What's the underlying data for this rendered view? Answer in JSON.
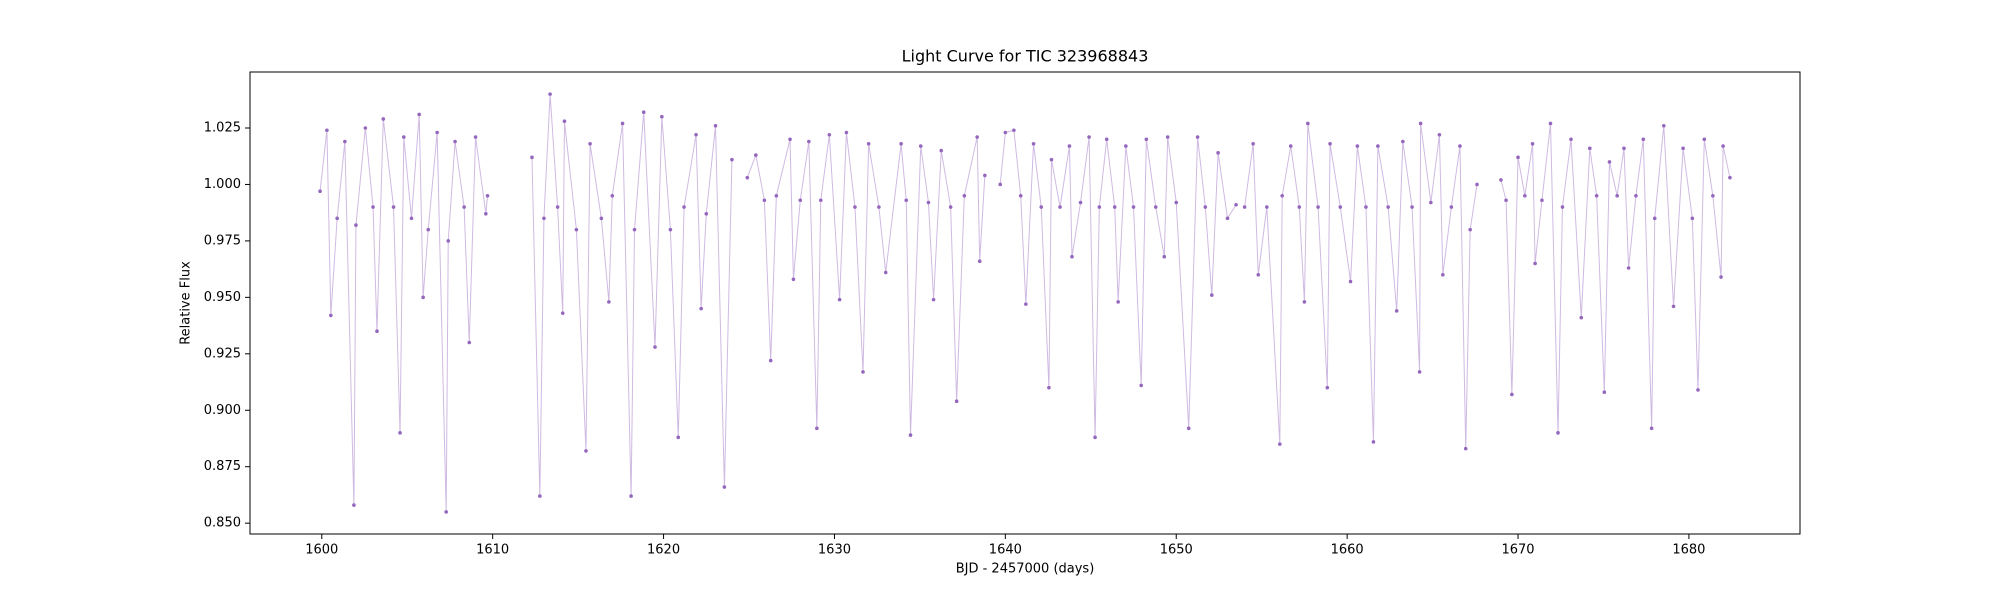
{
  "chart_data": {
    "type": "line",
    "title": "Light Curve for TIC 323968843",
    "x_label": "BJD - 2457000 (days)",
    "y_label": "Relative Flux",
    "color": "#9467bd",
    "grid": false,
    "xlim": [
      1595.8,
      1686.5
    ],
    "ylim": [
      0.8452,
      1.0498
    ],
    "xticks": [
      1600,
      1610,
      1620,
      1630,
      1640,
      1650,
      1660,
      1670,
      1680
    ],
    "yticks": [
      {
        "value": 0.85,
        "label": "0.850"
      },
      {
        "value": 0.875,
        "label": "0.875"
      },
      {
        "value": 0.9,
        "label": "0.900"
      },
      {
        "value": 0.925,
        "label": "0.925"
      },
      {
        "value": 0.95,
        "label": "0.950"
      },
      {
        "value": 0.975,
        "label": "0.975"
      },
      {
        "value": 1.0,
        "label": "1.000"
      },
      {
        "value": 1.025,
        "label": "1.025"
      }
    ],
    "x": [
      1599.9,
      1600.3,
      1600.53,
      1600.9,
      1601.35,
      1601.88,
      1602.0,
      1602.55,
      1603.0,
      1603.23,
      1603.6,
      1604.2,
      1604.58,
      1604.8,
      1605.25,
      1605.7,
      1605.93,
      1606.23,
      1606.75,
      1607.28,
      1607.4,
      1607.8,
      1608.33,
      1608.63,
      1609.0,
      1609.6,
      1609.7,
      null,
      1612.3,
      1612.76,
      1613.0,
      1613.36,
      1613.8,
      1614.1,
      1614.2,
      1614.9,
      1615.46,
      1615.7,
      1616.36,
      1616.8,
      1617.0,
      1617.6,
      1618.1,
      1618.3,
      1618.84,
      1619.5,
      1619.9,
      1620.4,
      1620.86,
      1621.2,
      1621.9,
      1622.2,
      1622.5,
      1623.04,
      1623.56,
      1624.0,
      null,
      1624.9,
      1625.4,
      1625.9,
      1626.27,
      1626.6,
      1627.4,
      1627.6,
      1628.0,
      1628.5,
      1628.97,
      1629.2,
      1629.7,
      1630.3,
      1630.7,
      1631.2,
      1631.67,
      1632.0,
      1632.6,
      1633.0,
      1633.9,
      1634.2,
      1634.45,
      1635.05,
      1635.5,
      1635.8,
      1636.25,
      1636.8,
      1637.15,
      1637.6,
      1638.35,
      1638.5,
      1638.8,
      null,
      1639.7,
      1640.0,
      1640.5,
      1640.9,
      1641.2,
      1641.65,
      1642.1,
      1642.55,
      1642.7,
      1643.2,
      1643.75,
      1643.9,
      1644.4,
      1644.9,
      1645.25,
      1645.5,
      1645.93,
      1646.4,
      1646.6,
      1647.05,
      1647.5,
      1647.95,
      1648.25,
      1648.8,
      1649.3,
      1649.5,
      1650.0,
      1650.73,
      1651.25,
      1651.7,
      1652.08,
      1652.45,
      1653.0,
      1653.5,
      null,
      1654.0,
      1654.5,
      1654.8,
      1655.3,
      1656.06,
      1656.2,
      1656.7,
      1657.2,
      1657.5,
      1657.7,
      1658.3,
      1658.84,
      1659.0,
      1659.6,
      1660.2,
      1660.6,
      1661.1,
      1661.54,
      1661.8,
      1662.4,
      1662.9,
      1663.26,
      1663.8,
      1664.24,
      1664.3,
      1664.9,
      1665.4,
      1665.6,
      1666.1,
      1666.6,
      1666.94,
      1667.2,
      1667.6,
      null,
      1669.0,
      1669.3,
      1669.64,
      1670.0,
      1670.4,
      1670.85,
      1671.0,
      1671.4,
      1671.9,
      1672.34,
      1672.6,
      1673.1,
      1673.7,
      1674.2,
      1674.6,
      1675.05,
      1675.35,
      1675.8,
      1676.2,
      1676.47,
      1676.9,
      1677.33,
      1677.82,
      1678.0,
      1678.53,
      1679.1,
      1679.66,
      1680.2,
      1680.53,
      1680.9,
      1681.4,
      1681.88,
      1682.0,
      1682.4
    ],
    "values": [
      0.997,
      1.024,
      0.942,
      0.985,
      1.019,
      0.858,
      0.982,
      1.025,
      0.99,
      0.935,
      1.029,
      0.99,
      0.89,
      1.021,
      0.985,
      1.031,
      0.95,
      0.98,
      1.023,
      0.855,
      0.975,
      1.019,
      0.99,
      0.93,
      1.021,
      0.987,
      0.995,
      null,
      1.012,
      0.862,
      0.985,
      1.04,
      0.99,
      0.943,
      1.028,
      0.98,
      0.882,
      1.018,
      0.985,
      0.948,
      0.995,
      1.027,
      0.862,
      0.98,
      1.032,
      0.928,
      1.03,
      0.98,
      0.888,
      0.99,
      1.022,
      0.945,
      0.987,
      1.026,
      0.866,
      1.011,
      null,
      1.003,
      1.013,
      0.993,
      0.922,
      0.995,
      1.02,
      0.958,
      0.993,
      1.019,
      0.892,
      0.993,
      1.022,
      0.949,
      1.023,
      0.99,
      0.917,
      1.018,
      0.99,
      0.961,
      1.018,
      0.993,
      0.889,
      1.017,
      0.992,
      0.949,
      1.015,
      0.99,
      0.904,
      0.995,
      1.021,
      0.966,
      1.004,
      null,
      1.0,
      1.023,
      1.024,
      0.995,
      0.947,
      1.018,
      0.99,
      0.91,
      1.011,
      0.99,
      1.017,
      0.968,
      0.992,
      1.021,
      0.888,
      0.99,
      1.02,
      0.99,
      0.948,
      1.017,
      0.99,
      0.911,
      1.02,
      0.99,
      0.968,
      1.021,
      0.992,
      0.892,
      1.021,
      0.99,
      0.951,
      1.014,
      0.985,
      0.991,
      null,
      0.99,
      1.018,
      0.96,
      0.99,
      0.885,
      0.995,
      1.017,
      0.99,
      0.948,
      1.027,
      0.99,
      0.91,
      1.018,
      0.99,
      0.957,
      1.017,
      0.99,
      0.886,
      1.017,
      0.99,
      0.944,
      1.019,
      0.99,
      0.917,
      1.027,
      0.992,
      1.022,
      0.96,
      0.99,
      1.017,
      0.883,
      0.98,
      1.0,
      null,
      1.002,
      0.993,
      0.907,
      1.012,
      0.995,
      1.018,
      0.965,
      0.993,
      1.027,
      0.89,
      0.99,
      1.02,
      0.941,
      1.016,
      0.995,
      0.908,
      1.01,
      0.995,
      1.016,
      0.963,
      0.995,
      1.02,
      0.892,
      0.985,
      1.026,
      0.946,
      1.016,
      0.985,
      0.909,
      1.02,
      0.995,
      0.959,
      1.017,
      1.003
    ]
  }
}
